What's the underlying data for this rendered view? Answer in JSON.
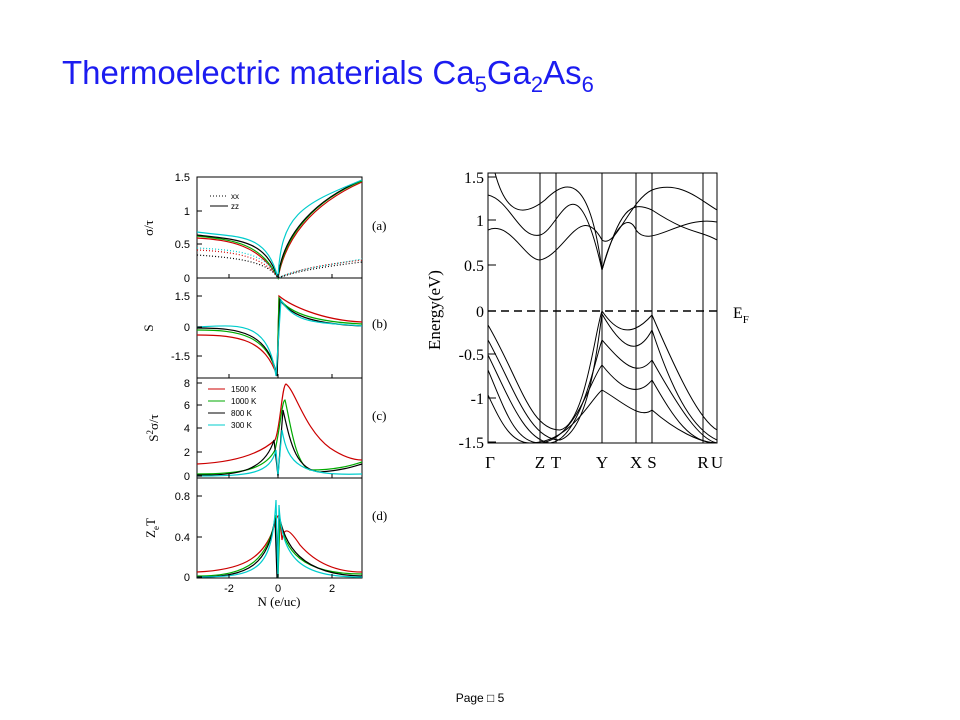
{
  "title": [
    "Thermoelectric materials Ca",
    "5",
    "Ga",
    "2",
    "As",
    "6"
  ],
  "left_figure": {
    "panels": [
      {
        "ylabel": [
          "σ/τ"
        ],
        "yticks": [
          "1.5",
          "1",
          "0.5",
          "0"
        ],
        "tag": "(a)",
        "legend": [
          "xx",
          "zz"
        ]
      },
      {
        "ylabel": [
          "S"
        ],
        "yticks": [
          "1.5",
          "0",
          "-1.5"
        ],
        "tag": "(b)"
      },
      {
        "ylabel": [
          "S",
          "2",
          "σ/τ"
        ],
        "yticks": [
          "8",
          "6",
          "4",
          "2",
          "0"
        ],
        "tag": "(c)",
        "legend": [
          "1500 K",
          "1000 K",
          "800 K",
          "300 K"
        ]
      },
      {
        "ylabel": [
          "Z",
          "e",
          "T"
        ],
        "yticks": [
          "0.8",
          "0.4",
          "0"
        ],
        "tag": "(d)"
      }
    ],
    "xticks": [
      "-2",
      "0",
      "2"
    ],
    "xlabel": "N (e/uc)"
  },
  "right_figure": {
    "ylabel": "Energy(eV)",
    "yticks": [
      "1.5",
      "1",
      "0.5",
      "0",
      "-0.5",
      "-1",
      "-1.5"
    ],
    "kpoints": [
      "Γ",
      "Z",
      "T",
      "Y",
      "X",
      "S",
      "R",
      "U"
    ],
    "fermi_label": [
      "E",
      "F"
    ]
  },
  "footer": "Page □ 5"
}
